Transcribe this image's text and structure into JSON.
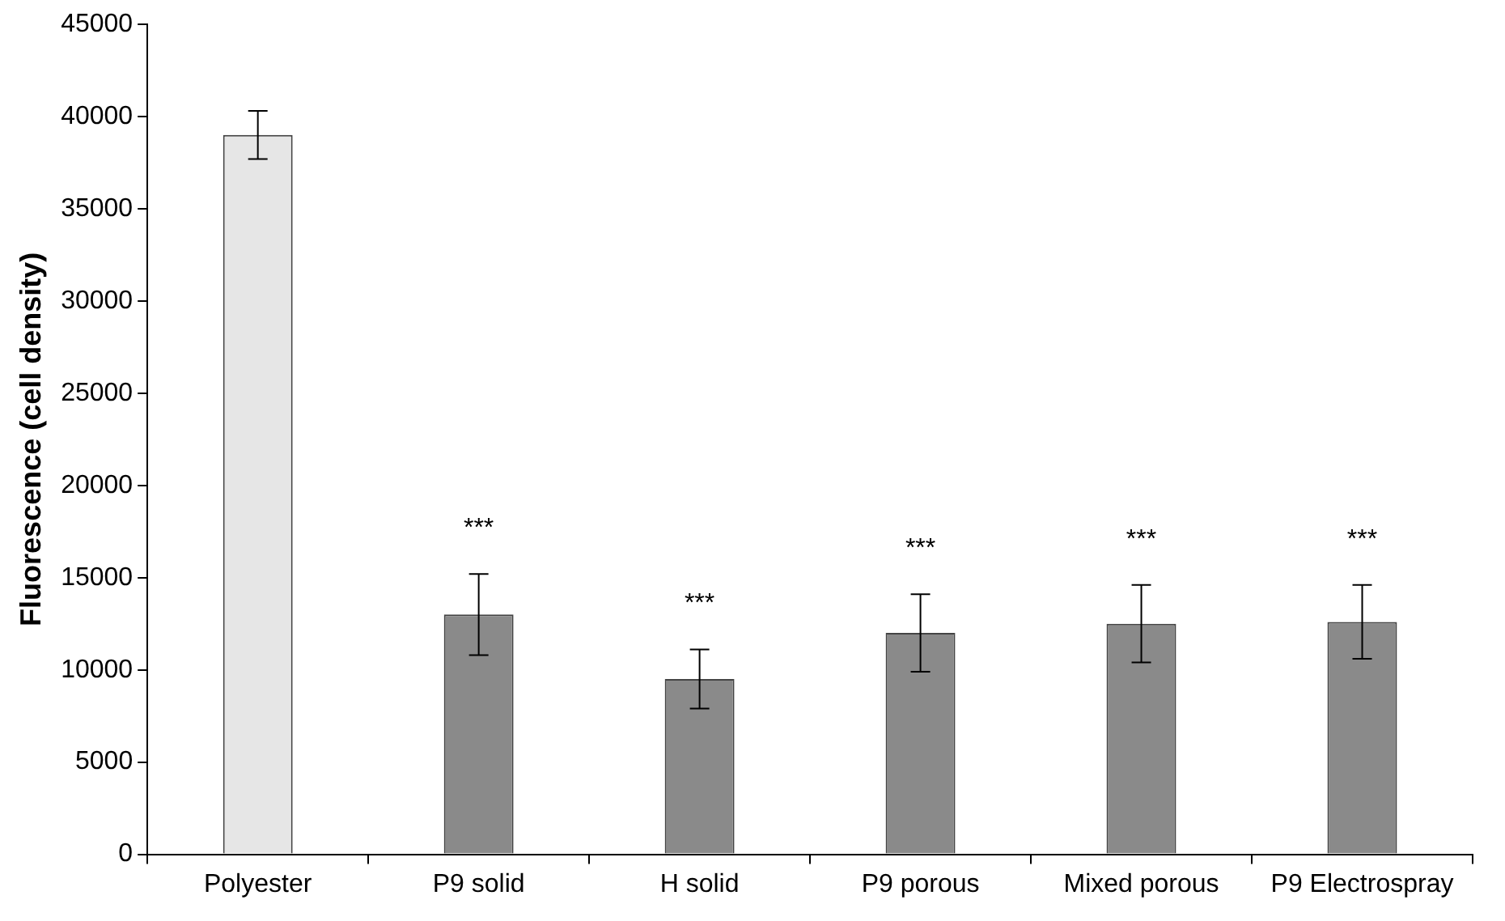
{
  "chart_data": {
    "type": "bar",
    "ylabel": "Fluorescence (cell density)",
    "categories": [
      "Polyester",
      "P9 solid",
      "H solid",
      "P9 porous",
      "Mixed porous",
      "P9 Electrospray"
    ],
    "values": [
      39000,
      13000,
      9500,
      12000,
      12500,
      12600
    ],
    "errors": [
      1300,
      2200,
      1600,
      2100,
      2100,
      2000
    ],
    "colors": [
      "#e6e6e6",
      "#8a8a8a",
      "#8a8a8a",
      "#8a8a8a",
      "#8a8a8a",
      "#8a8a8a"
    ],
    "ylim": [
      0,
      45000
    ],
    "yticks": [
      0,
      5000,
      10000,
      15000,
      20000,
      25000,
      30000,
      35000,
      40000,
      45000
    ],
    "grid": false,
    "legend": false,
    "annotations": [
      "***",
      "***",
      "***",
      "***",
      "***"
    ]
  }
}
